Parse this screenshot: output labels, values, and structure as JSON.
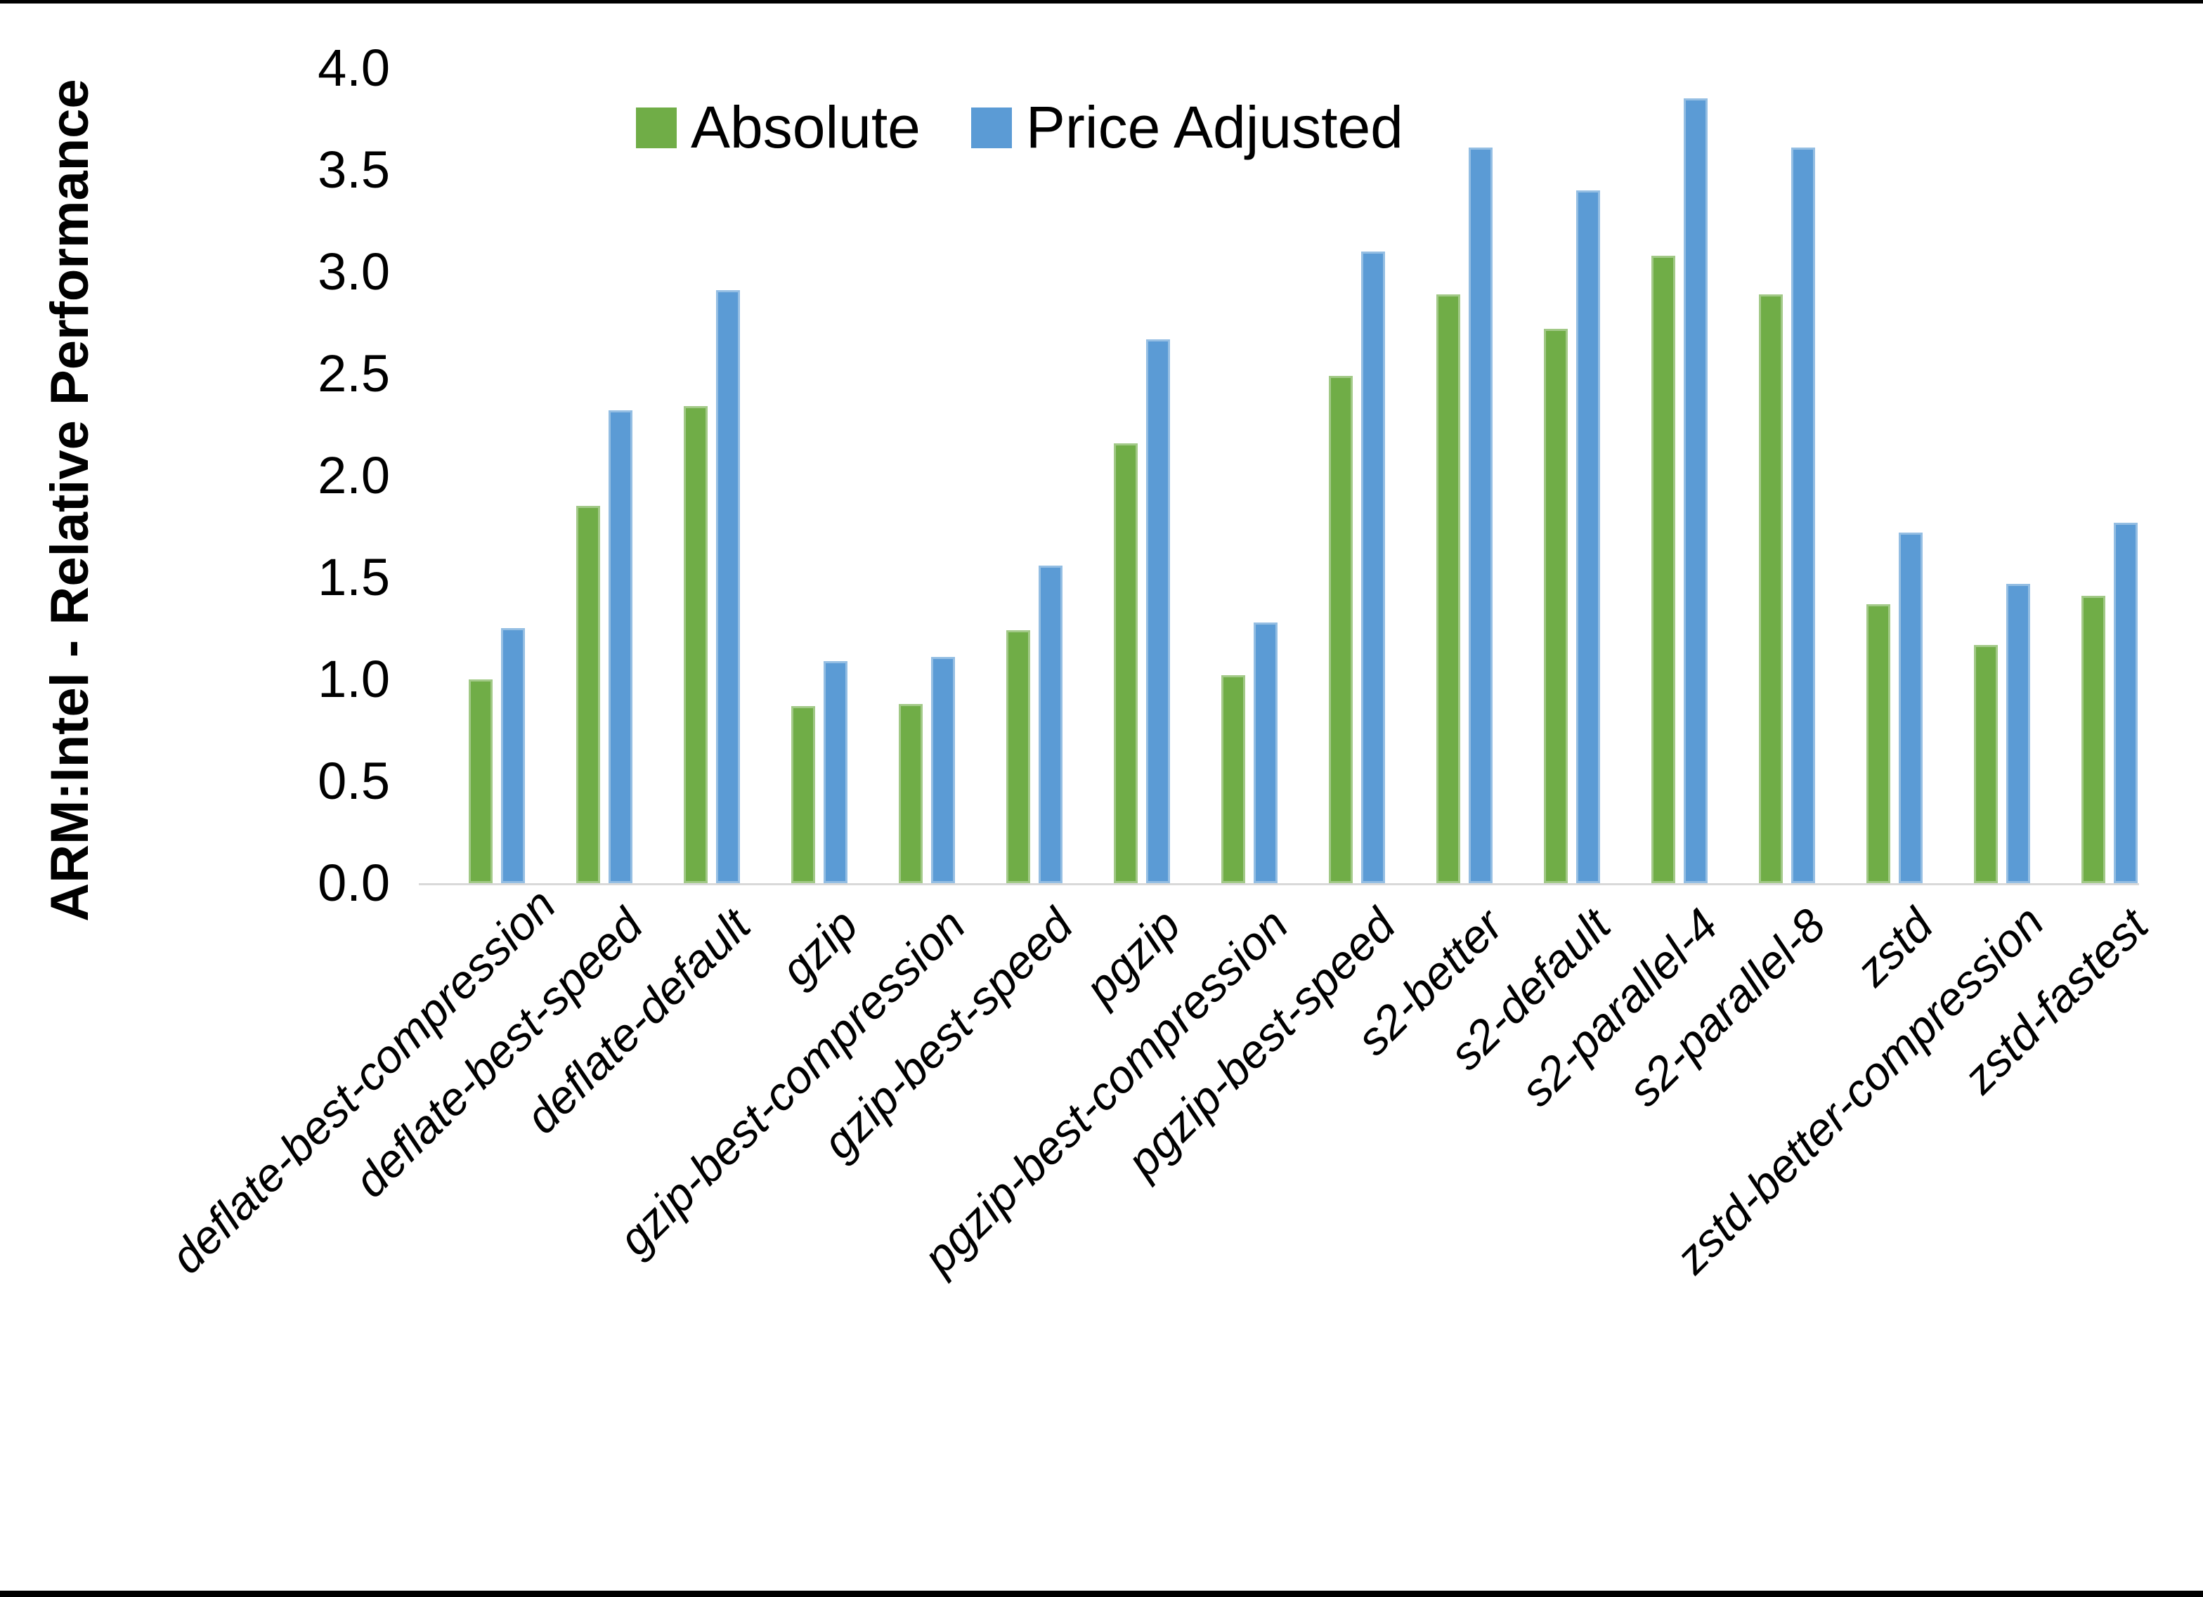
{
  "figure": {
    "y_axis_title": "ARM:Intel - Relative Performance"
  },
  "chart_data": {
    "type": "bar",
    "title": "",
    "xlabel": "",
    "ylabel": "ARM:Intel - Relative Performance",
    "ylim": [
      0,
      4
    ],
    "yticks": [
      "0.0",
      "0.5",
      "1.0",
      "1.5",
      "2.0",
      "2.5",
      "3.0",
      "3.5",
      "4.0"
    ],
    "grid": false,
    "legend_position": "top-center",
    "categories": [
      "deflate-best-compression",
      "deflate-best-speed",
      "deflate-default",
      "gzip",
      "gzip-best-compression",
      "gzip-best-speed",
      "pgzip",
      "pgzip-best-compression",
      "pgzip-best-speed",
      "s2-better",
      "s2-default",
      "s2-parallel-4",
      "s2-parallel-8",
      "zstd",
      "zstd-better-compression",
      "zstd-fastest"
    ],
    "series": [
      {
        "name": "Absolute",
        "color": "#70AD47",
        "values": [
          1.0,
          1.85,
          2.34,
          0.87,
          0.88,
          1.24,
          2.16,
          1.02,
          2.49,
          2.89,
          2.72,
          3.08,
          2.89,
          1.37,
          1.17,
          1.41
        ]
      },
      {
        "name": "Price Adjusted",
        "color": "#5B9BD5",
        "values": [
          1.25,
          2.32,
          2.91,
          1.09,
          1.11,
          1.56,
          2.67,
          1.28,
          3.1,
          3.61,
          3.4,
          3.85,
          3.61,
          1.72,
          1.47,
          1.77
        ]
      }
    ]
  }
}
